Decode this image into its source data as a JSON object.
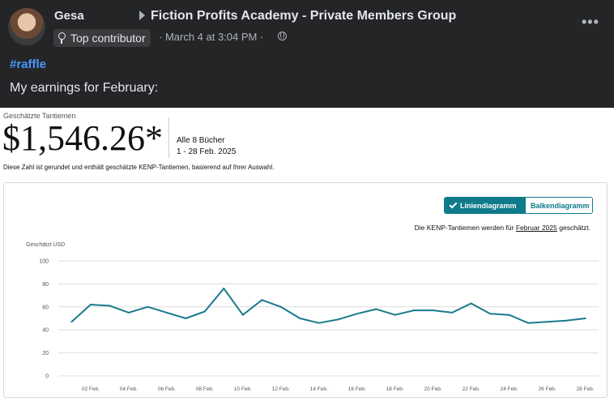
{
  "post": {
    "author": "Gesa",
    "group": "Fiction Profits Academy - Private Members Group",
    "badge": "Top contributor",
    "meta": "· March 4 at 3:04 PM ·",
    "hashtag": "#raffle",
    "text": "My earnings for February:"
  },
  "kdp": {
    "label": "Geschätzte Tantiemen",
    "amount": "$1,546.26*",
    "books": "Alle 8 Bücher",
    "range": "1 - 28 Feb. 2025",
    "note": "Diese Zahl ist gerundet und enthält geschätzte KENP-Tantiemen, basierend auf Ihrer Auswahl.",
    "toggle_line": "Liniendiagramm",
    "toggle_bar": "Balkendiagramm",
    "kenp_prefix": "Die KENP-Tantiemen werden für",
    "kenp_month": "Februar 2025",
    "kenp_suffix": "geschätzt."
  },
  "chart_data": {
    "type": "line",
    "ylabel": "Geschätzt USD",
    "ylim": [
      0,
      100
    ],
    "yticks": [
      0,
      20,
      40,
      60,
      80,
      100
    ],
    "x_tick_labels": [
      "02 Feb.",
      "04 Feb.",
      "06 Feb.",
      "08 Feb.",
      "10 Feb.",
      "12 Feb.",
      "14 Feb.",
      "16 Feb.",
      "18 Feb.",
      "20 Feb.",
      "22 Feb.",
      "24 Feb.",
      "26 Feb.",
      "28 Feb."
    ],
    "x": [
      1,
      2,
      3,
      4,
      5,
      6,
      7,
      8,
      9,
      10,
      11,
      12,
      13,
      14,
      15,
      16,
      17,
      18,
      19,
      20,
      21,
      22,
      23,
      24,
      25,
      26,
      27,
      28
    ],
    "values": [
      47,
      62,
      61,
      55,
      60,
      55,
      50,
      56,
      76,
      53,
      66,
      60,
      50,
      46,
      49,
      54,
      58,
      53,
      57,
      57,
      55,
      63,
      54,
      53,
      46,
      47,
      48,
      50
    ],
    "grid": true,
    "color": "#1a7a8c"
  },
  "colors": {
    "accent": "#0e7a8a",
    "line": "#1a7a8c",
    "hashtag": "#4599ff",
    "post_bg": "#242526"
  }
}
